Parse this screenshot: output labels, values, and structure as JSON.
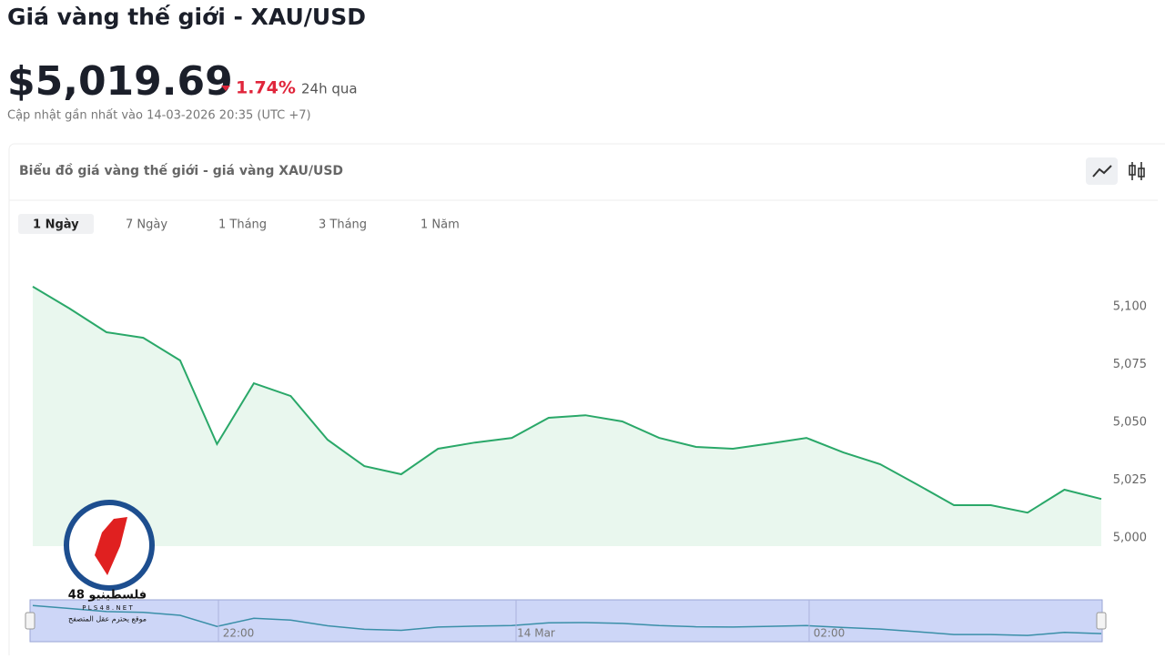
{
  "header": {
    "title": "Giá vàng thế giới - XAU/USD",
    "price": "$5,019.69",
    "change": "1.74%",
    "change_period": "24h qua",
    "updated": "Cập nhật gần nhất vào 14-03-2026 20:35 (UTC +7)"
  },
  "tabs": [
    "1 Ngày",
    "7 Ngày",
    "1 Tháng",
    "3 Tháng",
    "1 Năm"
  ],
  "navigator": {
    "labels": [
      "22:00",
      "14 Mar",
      "02:00"
    ]
  },
  "watermark": {
    "name": "فلسطينيو 48",
    "site": "P L S 4 8 . N E T",
    "slogan": "موقع يحترم عقل المتصفح"
  },
  "chart_data": {
    "type": "area",
    "title": "Biểu đồ giá vàng thế giới - giá vàng XAU/USD",
    "categories": [
      null,
      null,
      null,
      null,
      null,
      null,
      null,
      null,
      null,
      null,
      null,
      null,
      null,
      null,
      null,
      null,
      null,
      null,
      null,
      null,
      null,
      null,
      null,
      null,
      null,
      null,
      null,
      null,
      null,
      null
    ],
    "values": [
      5108.7,
      5099.2,
      5089,
      5086.6,
      5076.8,
      5040.6,
      5066.9,
      5061.4,
      5042.5,
      5031.1,
      5027.6,
      5038.6,
      5041.3,
      5043.3,
      5052,
      5053.1,
      5050.4,
      5043.3,
      5039.4,
      5038.6,
      5040.9,
      5043.3,
      5037,
      5031.9,
      5023.2,
      5014.2,
      5014.2,
      5011,
      5020.9,
      5016.9
    ],
    "color": "#2aa869",
    "ylim": [
      4996.5,
      5118.5
    ],
    "yticks": [
      {
        "value": 5000,
        "label": "5,000"
      },
      {
        "value": 5025,
        "label": "5,025"
      },
      {
        "value": 5050,
        "label": "5,050"
      },
      {
        "value": 5075,
        "label": "5,075"
      },
      {
        "value": 5100,
        "label": "5,100"
      }
    ]
  }
}
